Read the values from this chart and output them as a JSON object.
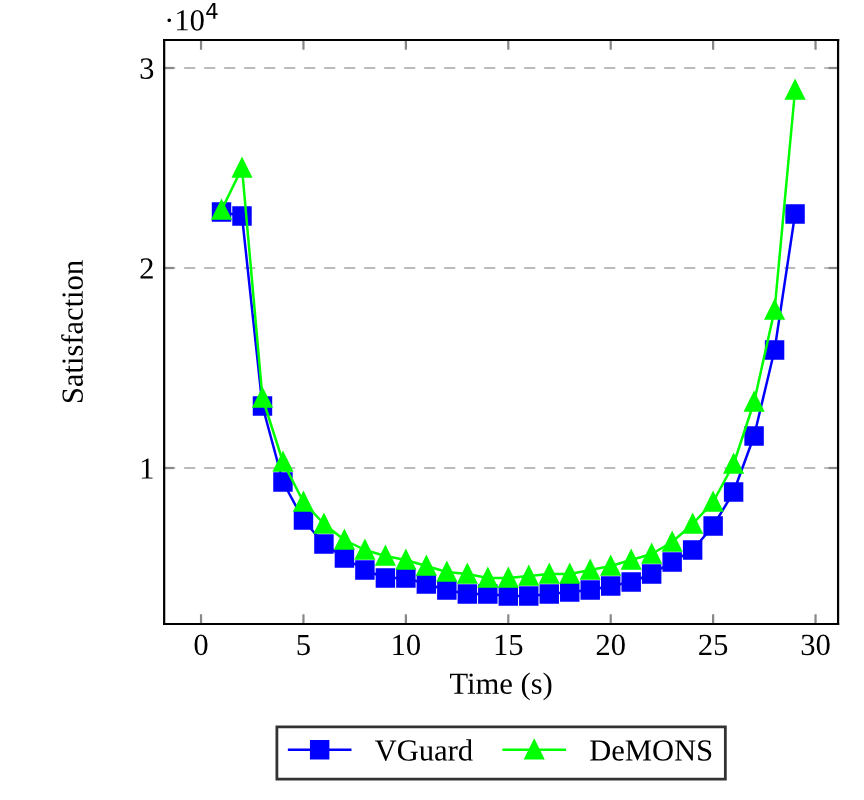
{
  "chart_data": {
    "type": "line",
    "xlabel": "Time (s)",
    "ylabel": "Satisfaction",
    "x": [
      1,
      2,
      3,
      4,
      5,
      6,
      7,
      8,
      9,
      10,
      11,
      12,
      13,
      14,
      15,
      16,
      17,
      18,
      19,
      20,
      21,
      22,
      23,
      24,
      25,
      26,
      27,
      28,
      29
    ],
    "series": [
      {
        "name": "VGuard",
        "color": "#0000ff",
        "marker": "square",
        "values": [
          2.28,
          2.26,
          1.31,
          0.93,
          0.74,
          0.62,
          0.55,
          0.49,
          0.45,
          0.45,
          0.42,
          0.39,
          0.37,
          0.37,
          0.36,
          0.36,
          0.37,
          0.38,
          0.39,
          0.41,
          0.43,
          0.47,
          0.53,
          0.59,
          0.71,
          0.88,
          1.16,
          1.59,
          2.27
        ]
      },
      {
        "name": "DeMONS",
        "color": "#00ff00",
        "marker": "triangle",
        "values": [
          2.29,
          2.5,
          1.35,
          1.03,
          0.83,
          0.72,
          0.64,
          0.59,
          0.56,
          0.54,
          0.51,
          0.48,
          0.47,
          0.45,
          0.45,
          0.46,
          0.47,
          0.47,
          0.49,
          0.51,
          0.54,
          0.57,
          0.63,
          0.72,
          0.83,
          1.02,
          1.33,
          1.79,
          2.89
        ]
      }
    ],
    "xlim": [
      -1.8,
      31.1
    ],
    "ylim": [
      0.22,
      3.14
    ],
    "xticks": [
      0,
      5,
      10,
      15,
      20,
      25,
      30
    ],
    "yticks": [
      1,
      2,
      3
    ],
    "annotations": [
      "·10$^{4}$"
    ],
    "grid": "y",
    "legend": "bottom",
    "line_style": "solid"
  }
}
